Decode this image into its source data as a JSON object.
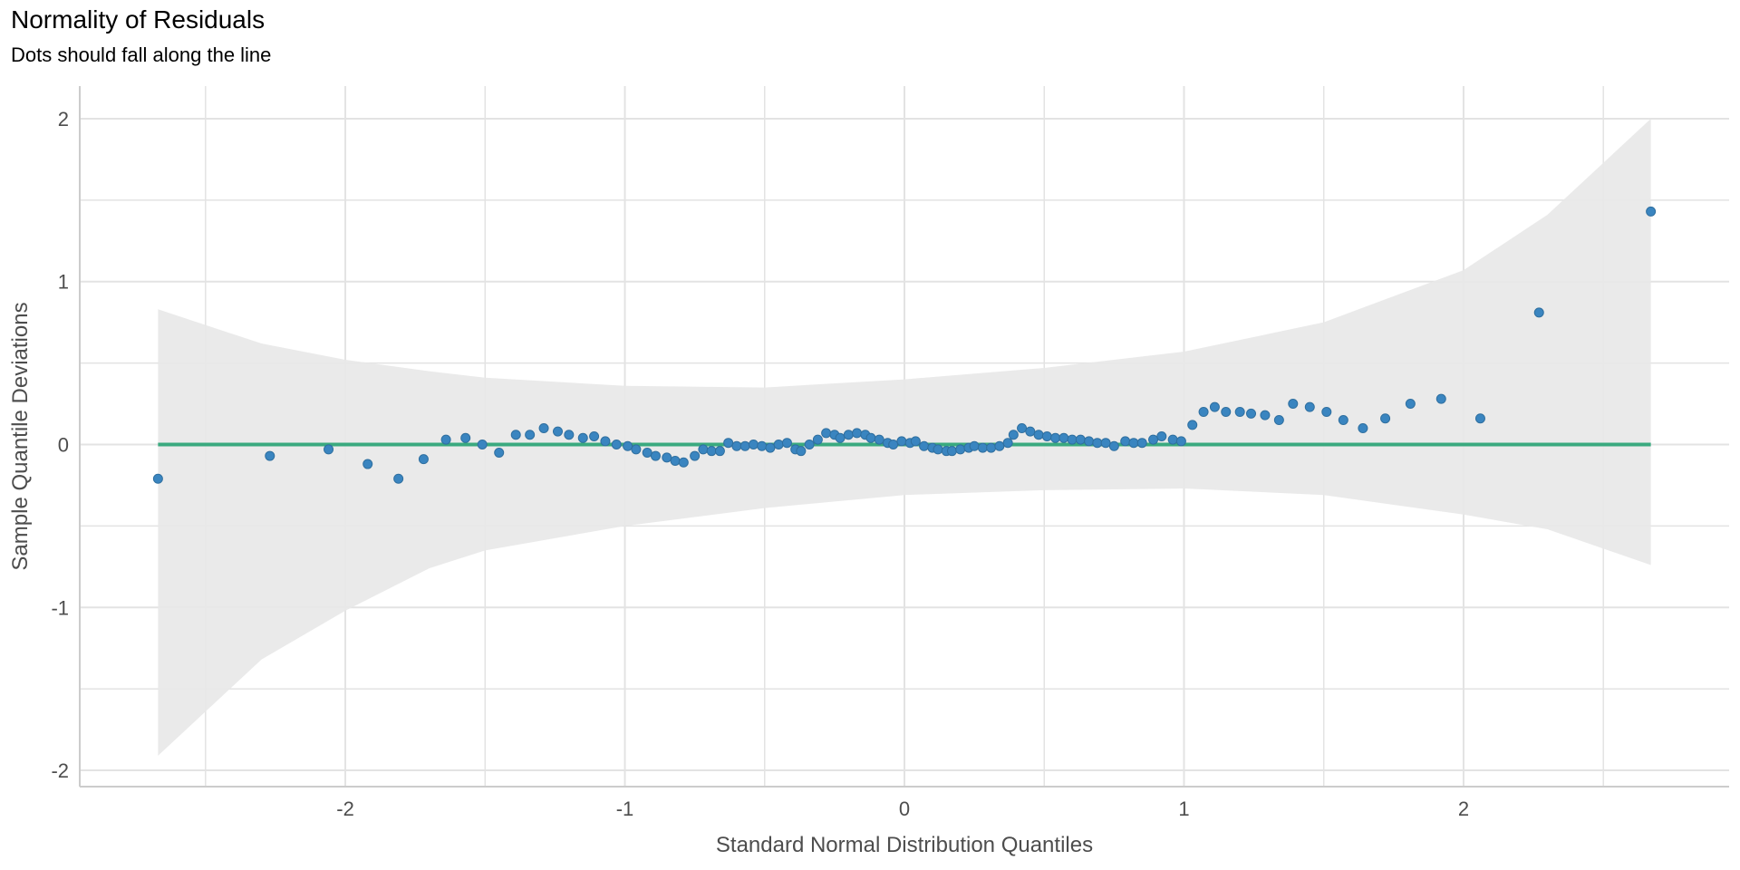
{
  "chart_data": {
    "type": "scatter",
    "title": "Normality of Residuals",
    "subtitle": "Dots should fall along the line",
    "xlabel": "Standard Normal Distribution Quantiles",
    "ylabel": "Sample Quantile Deviations",
    "xlim": [
      -2.95,
      2.95
    ],
    "ylim": [
      -2.1,
      2.2
    ],
    "x_ticks": [
      -2,
      -1,
      0,
      1,
      2
    ],
    "x_tick_labels": [
      "-2",
      "-1",
      "0",
      "1",
      "2"
    ],
    "y_ticks": [
      -2,
      -1,
      0,
      1,
      2
    ],
    "y_tick_labels": [
      "-2",
      "-1",
      "0",
      "1",
      "2"
    ],
    "grid": true,
    "colors": {
      "points": "#3a85c0",
      "reference_line": "#3aaa7f",
      "band": "#e8e8e8",
      "grid": "#e3e3e3"
    },
    "reference_line": {
      "x": [
        -2.67,
        2.67
      ],
      "y": [
        0,
        0
      ]
    },
    "confidence_band": {
      "x": [
        -2.67,
        -2.3,
        -2.0,
        -1.7,
        -1.5,
        -1.0,
        -0.5,
        0,
        0.5,
        1.0,
        1.5,
        2.0,
        2.3,
        2.67
      ],
      "upper": [
        0.83,
        0.62,
        0.52,
        0.45,
        0.41,
        0.36,
        0.35,
        0.4,
        0.47,
        0.57,
        0.75,
        1.07,
        1.41,
        2.0
      ],
      "lower": [
        -1.91,
        -1.32,
        -1.02,
        -0.76,
        -0.65,
        -0.5,
        -0.39,
        -0.31,
        -0.28,
        -0.27,
        -0.31,
        -0.43,
        -0.52,
        -0.74
      ]
    },
    "points": {
      "x": [
        -2.67,
        -2.27,
        -2.06,
        -1.92,
        -1.81,
        -1.72,
        -1.64,
        -1.57,
        -1.51,
        -1.45,
        -1.39,
        -1.34,
        -1.29,
        -1.24,
        -1.2,
        -1.15,
        -1.11,
        -1.07,
        -1.03,
        -0.99,
        -0.96,
        -0.92,
        -0.89,
        -0.85,
        -0.82,
        -0.79,
        -0.75,
        -0.72,
        -0.69,
        -0.66,
        -0.63,
        -0.6,
        -0.57,
        -0.54,
        -0.51,
        -0.48,
        -0.45,
        -0.42,
        -0.39,
        -0.37,
        -0.34,
        -0.31,
        -0.28,
        -0.25,
        -0.23,
        -0.2,
        -0.17,
        -0.14,
        -0.12,
        -0.09,
        -0.06,
        -0.04,
        -0.01,
        0.02,
        0.04,
        0.07,
        0.1,
        0.12,
        0.15,
        0.17,
        0.2,
        0.23,
        0.25,
        0.28,
        0.31,
        0.34,
        0.37,
        0.39,
        0.42,
        0.45,
        0.48,
        0.51,
        0.54,
        0.57,
        0.6,
        0.63,
        0.66,
        0.69,
        0.72,
        0.75,
        0.79,
        0.82,
        0.85,
        0.89,
        0.92,
        0.96,
        0.99,
        1.03,
        1.07,
        1.11,
        1.15,
        1.2,
        1.24,
        1.29,
        1.34,
        1.39,
        1.45,
        1.51,
        1.57,
        1.64,
        1.72,
        1.81,
        1.92,
        2.06,
        2.27,
        2.67
      ],
      "y": [
        -0.21,
        -0.07,
        -0.03,
        -0.12,
        -0.21,
        -0.09,
        0.03,
        0.04,
        0.0,
        -0.05,
        0.06,
        0.06,
        0.1,
        0.08,
        0.06,
        0.04,
        0.05,
        0.02,
        0.0,
        -0.01,
        -0.03,
        -0.05,
        -0.07,
        -0.08,
        -0.1,
        -0.11,
        -0.07,
        -0.03,
        -0.04,
        -0.04,
        0.01,
        -0.01,
        -0.01,
        0.0,
        -0.01,
        -0.02,
        0.0,
        0.01,
        -0.03,
        -0.04,
        0.0,
        0.03,
        0.07,
        0.06,
        0.04,
        0.06,
        0.07,
        0.06,
        0.04,
        0.03,
        0.01,
        0.0,
        0.02,
        0.01,
        0.02,
        -0.01,
        -0.02,
        -0.03,
        -0.04,
        -0.04,
        -0.03,
        -0.02,
        -0.01,
        -0.02,
        -0.02,
        -0.01,
        0.01,
        0.06,
        0.1,
        0.08,
        0.06,
        0.05,
        0.04,
        0.04,
        0.03,
        0.03,
        0.02,
        0.01,
        0.01,
        -0.01,
        0.02,
        0.01,
        0.01,
        0.03,
        0.05,
        0.03,
        0.02,
        0.12,
        0.2,
        0.23,
        0.2,
        0.2,
        0.19,
        0.18,
        0.15,
        0.25,
        0.23,
        0.2,
        0.15,
        0.1,
        0.16,
        0.25,
        0.28,
        0.16,
        0.81,
        1.43
      ]
    }
  }
}
